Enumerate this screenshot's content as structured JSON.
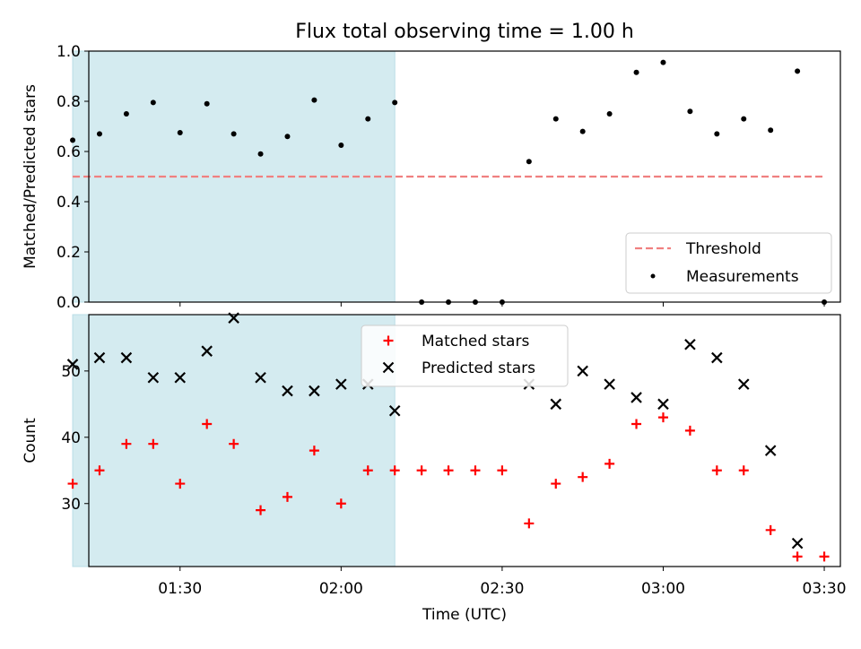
{
  "figure": {
    "title": "Flux total observing time = 1.00 h"
  },
  "chart_data": [
    {
      "type": "scatter",
      "panel": "top",
      "title": "Flux total observing time = 1.00 h",
      "xlabel": "",
      "ylabel": "Matched/Predicted stars",
      "ylim": [
        0,
        1.0
      ],
      "yticks": [
        0.0,
        0.2,
        0.4,
        0.6,
        0.8,
        1.0
      ],
      "ytick_labels": [
        "0.0",
        "0.2",
        "0.4",
        "0.6",
        "0.8",
        "1.0"
      ],
      "xlim": [
        "01:13",
        "03:33"
      ],
      "shaded_span": [
        "01:10",
        "02:10"
      ],
      "shade_color": "#d4ebf0",
      "legend": "lower-right",
      "series": [
        {
          "name": "Threshold",
          "kind": "dashed-line",
          "color": "#f08080",
          "x": [
            "01:10",
            "03:30"
          ],
          "y": [
            0.5,
            0.5
          ]
        },
        {
          "name": "Measurements",
          "kind": "dot",
          "color": "#000000",
          "x": [
            "01:10",
            "01:15",
            "01:20",
            "01:25",
            "01:30",
            "01:35",
            "01:40",
            "01:45",
            "01:50",
            "01:55",
            "02:00",
            "02:05",
            "02:10",
            "02:15",
            "02:20",
            "02:25",
            "02:30",
            "02:35",
            "02:40",
            "02:45",
            "02:50",
            "02:55",
            "03:00",
            "03:05",
            "03:10",
            "03:15",
            "03:20",
            "03:25",
            "03:30"
          ],
          "y": [
            0.645,
            0.67,
            0.75,
            0.795,
            0.675,
            0.79,
            0.67,
            0.59,
            0.66,
            0.805,
            0.625,
            0.73,
            0.795,
            0.0,
            0.0,
            0.0,
            0.0,
            0.56,
            0.73,
            0.68,
            0.75,
            0.915,
            0.955,
            0.76,
            0.67,
            0.73,
            0.685,
            0.92,
            0.0
          ]
        }
      ]
    },
    {
      "type": "scatter",
      "panel": "bottom",
      "xlabel": "Time (UTC)",
      "ylabel": "Count",
      "ylim": [
        20.5,
        58.5
      ],
      "yticks": [
        30,
        40,
        50
      ],
      "ytick_labels": [
        "30",
        "40",
        "50"
      ],
      "xlim": [
        "01:13",
        "03:33"
      ],
      "xticks": [
        "01:30",
        "02:00",
        "02:30",
        "03:00",
        "03:30"
      ],
      "shaded_span": [
        "01:10",
        "02:10"
      ],
      "shade_color": "#d4ebf0",
      "legend": "upper-center",
      "series": [
        {
          "name": "Matched stars",
          "marker": "plus",
          "color": "#ff0000",
          "x": [
            "01:10",
            "01:15",
            "01:20",
            "01:25",
            "01:30",
            "01:35",
            "01:40",
            "01:45",
            "01:50",
            "01:55",
            "02:00",
            "02:05",
            "02:10",
            "02:15",
            "02:20",
            "02:25",
            "02:30",
            "02:35",
            "02:40",
            "02:45",
            "02:50",
            "02:55",
            "03:00",
            "03:05",
            "03:10",
            "03:15",
            "03:20",
            "03:25",
            "03:30"
          ],
          "y": [
            33,
            35,
            39,
            39,
            33,
            42,
            39,
            29,
            31,
            38,
            30,
            35,
            35,
            35,
            35,
            35,
            35,
            27,
            33,
            34,
            36,
            42,
            43,
            41,
            35,
            35,
            26,
            22,
            22
          ]
        },
        {
          "name": "Predicted stars",
          "marker": "x",
          "color": "#000000",
          "x": [
            "01:10",
            "01:15",
            "01:20",
            "01:25",
            "01:30",
            "01:35",
            "01:40",
            "01:45",
            "01:50",
            "01:55",
            "02:00",
            "02:05",
            "02:10",
            "02:35",
            "02:40",
            "02:45",
            "02:50",
            "02:55",
            "03:00",
            "03:05",
            "03:10",
            "03:15",
            "03:20",
            "03:25"
          ],
          "y": [
            51,
            52,
            52,
            49,
            49,
            53,
            58,
            49,
            47,
            47,
            48,
            48,
            44,
            48,
            45,
            50,
            48,
            46,
            45,
            54,
            52,
            48,
            38,
            24
          ]
        }
      ]
    }
  ]
}
